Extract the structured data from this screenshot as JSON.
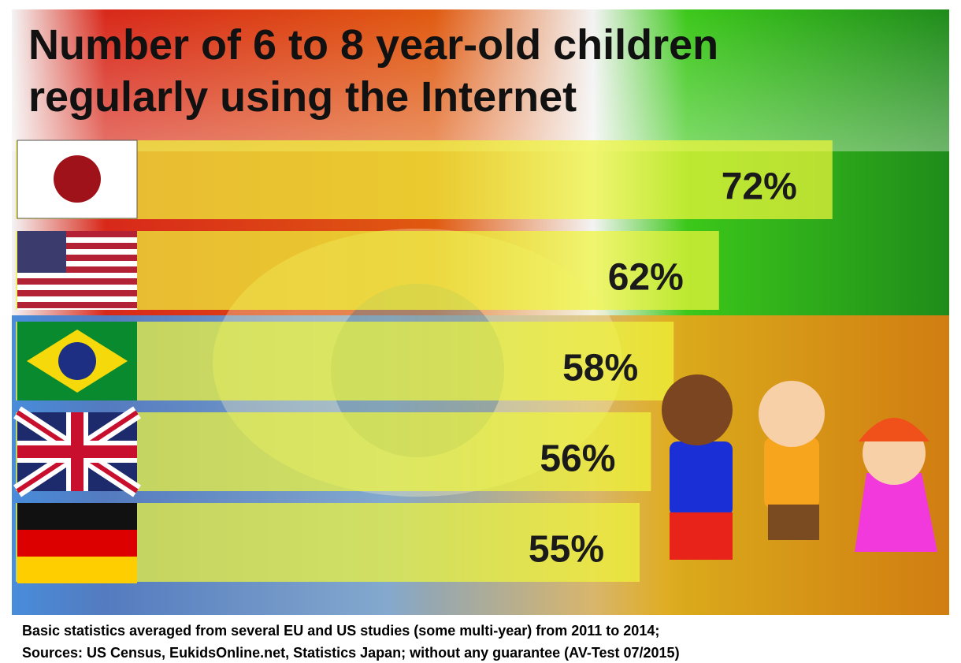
{
  "chart_data": {
    "type": "bar",
    "orientation": "horizontal",
    "title": "Number of 6 to 8 year-old children regularly using the Internet",
    "categories": [
      null,
      null,
      null,
      null,
      null
    ],
    "values": [
      72,
      62,
      58,
      56,
      55
    ],
    "value_labels": [
      "72%",
      "62%",
      "58%",
      "56%",
      "55%"
    ],
    "color": "#eef53c",
    "notes": [
      "Basic statistics averaged from several EU and US studies (some multi-year) from 2011 to 2014;",
      "Sources: US Census, EukidsOnline.net, Statistics Japan; without any guarantee (AV-Test 07/2015)"
    ]
  }
}
